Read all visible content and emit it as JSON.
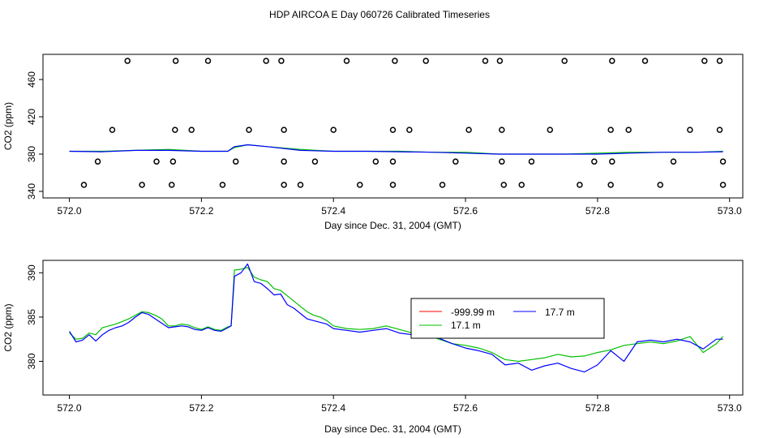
{
  "title": "HDP AIRCOA E  Day 060726  Calibrated Timeseries",
  "chart_data": [
    {
      "type": "scatter",
      "xlabel": "Day since Dec. 31, 2004 (GMT)",
      "ylabel": "CO2 (ppm)",
      "xlim": [
        571.96,
        573.02
      ],
      "ylim": [
        333,
        487
      ],
      "xticks": [
        "572.0",
        "572.2",
        "572.4",
        "572.6",
        "572.8",
        "573.0"
      ],
      "yticks": [
        "340",
        "380",
        "420",
        "460"
      ],
      "ytick_values": [
        340,
        380,
        420,
        460
      ],
      "calibration_points": [
        {
          "x": 572.088,
          "y": 480
        },
        {
          "x": 572.161,
          "y": 480
        },
        {
          "x": 572.21,
          "y": 480
        },
        {
          "x": 572.298,
          "y": 480
        },
        {
          "x": 572.321,
          "y": 480
        },
        {
          "x": 572.42,
          "y": 480
        },
        {
          "x": 572.493,
          "y": 480
        },
        {
          "x": 572.54,
          "y": 480
        },
        {
          "x": 572.63,
          "y": 480
        },
        {
          "x": 572.652,
          "y": 480
        },
        {
          "x": 572.75,
          "y": 480
        },
        {
          "x": 572.822,
          "y": 480
        },
        {
          "x": 572.872,
          "y": 480
        },
        {
          "x": 572.962,
          "y": 480
        },
        {
          "x": 572.985,
          "y": 480
        },
        {
          "x": 572.065,
          "y": 406
        },
        {
          "x": 572.16,
          "y": 406
        },
        {
          "x": 572.185,
          "y": 406
        },
        {
          "x": 572.272,
          "y": 406
        },
        {
          "x": 572.325,
          "y": 406
        },
        {
          "x": 572.4,
          "y": 406
        },
        {
          "x": 572.49,
          "y": 406
        },
        {
          "x": 572.515,
          "y": 406
        },
        {
          "x": 572.605,
          "y": 406
        },
        {
          "x": 572.655,
          "y": 406
        },
        {
          "x": 572.728,
          "y": 406
        },
        {
          "x": 572.82,
          "y": 406
        },
        {
          "x": 572.847,
          "y": 406
        },
        {
          "x": 572.94,
          "y": 406
        },
        {
          "x": 572.985,
          "y": 406
        },
        {
          "x": 572.043,
          "y": 372
        },
        {
          "x": 572.132,
          "y": 372
        },
        {
          "x": 572.157,
          "y": 372
        },
        {
          "x": 572.252,
          "y": 372
        },
        {
          "x": 572.325,
          "y": 372
        },
        {
          "x": 572.372,
          "y": 372
        },
        {
          "x": 572.464,
          "y": 372
        },
        {
          "x": 572.49,
          "y": 372
        },
        {
          "x": 572.585,
          "y": 372
        },
        {
          "x": 572.655,
          "y": 372
        },
        {
          "x": 572.7,
          "y": 372
        },
        {
          "x": 572.795,
          "y": 372
        },
        {
          "x": 572.822,
          "y": 372
        },
        {
          "x": 572.915,
          "y": 372
        },
        {
          "x": 572.99,
          "y": 372
        },
        {
          "x": 572.022,
          "y": 347
        },
        {
          "x": 572.11,
          "y": 347
        },
        {
          "x": 572.155,
          "y": 347
        },
        {
          "x": 572.232,
          "y": 347
        },
        {
          "x": 572.325,
          "y": 347
        },
        {
          "x": 572.35,
          "y": 347
        },
        {
          "x": 572.44,
          "y": 347
        },
        {
          "x": 572.49,
          "y": 347
        },
        {
          "x": 572.565,
          "y": 347
        },
        {
          "x": 572.658,
          "y": 347
        },
        {
          "x": 572.685,
          "y": 347
        },
        {
          "x": 572.773,
          "y": 347
        },
        {
          "x": 572.82,
          "y": 347
        },
        {
          "x": 572.895,
          "y": 347
        },
        {
          "x": 572.99,
          "y": 347
        }
      ],
      "series": [
        {
          "name": "17.1 m",
          "color": "#00c000",
          "x": [
            572.0,
            572.05,
            572.1,
            572.15,
            572.2,
            572.24,
            572.25,
            572.27,
            572.3,
            572.35,
            572.4,
            572.45,
            572.5,
            572.55,
            572.6,
            572.65,
            572.7,
            572.75,
            572.8,
            572.85,
            572.9,
            572.95,
            572.99
          ],
          "y": [
            383,
            383,
            384,
            385,
            383,
            383,
            387,
            390,
            388,
            385,
            383,
            383,
            383,
            382,
            382,
            380,
            380,
            380,
            381,
            382,
            382,
            382,
            383
          ]
        },
        {
          "name": "17.7 m",
          "color": "#0000ff",
          "x": [
            572.0,
            572.05,
            572.1,
            572.15,
            572.2,
            572.24,
            572.25,
            572.27,
            572.3,
            572.35,
            572.4,
            572.45,
            572.5,
            572.55,
            572.6,
            572.65,
            572.7,
            572.75,
            572.8,
            572.85,
            572.9,
            572.95,
            572.99
          ],
          "y": [
            383,
            382.5,
            384,
            384,
            383,
            383,
            388,
            390,
            388,
            384,
            383,
            383,
            382.5,
            382,
            381,
            380,
            380,
            380,
            380,
            381,
            382,
            382,
            382.5
          ]
        }
      ]
    },
    {
      "type": "line",
      "xlabel": "Day since Dec. 31, 2004 (GMT)",
      "ylabel": "CO2 (ppm)",
      "xlim": [
        571.96,
        573.02
      ],
      "ylim": [
        376.2,
        391.4
      ],
      "xticks": [
        "572.0",
        "572.2",
        "572.4",
        "572.6",
        "572.8",
        "573.0"
      ],
      "yticks": [
        "380",
        "385",
        "390"
      ],
      "ytick_values": [
        380,
        385,
        390
      ],
      "legend_position": "center-right",
      "series": [
        {
          "name": "-999.99 m",
          "color": "#ff0000",
          "x": [],
          "y": []
        },
        {
          "name": "17.1 m",
          "color": "#00c000",
          "x": [
            572.0,
            572.01,
            572.02,
            572.03,
            572.04,
            572.05,
            572.06,
            572.07,
            572.08,
            572.09,
            572.1,
            572.11,
            572.12,
            572.13,
            572.14,
            572.15,
            572.16,
            572.17,
            572.18,
            572.19,
            572.2,
            572.21,
            572.22,
            572.23,
            572.24,
            572.245,
            572.25,
            572.26,
            572.27,
            572.28,
            572.29,
            572.3,
            572.31,
            572.32,
            572.33,
            572.34,
            572.35,
            572.36,
            572.37,
            572.38,
            572.39,
            572.4,
            572.42,
            572.44,
            572.46,
            572.48,
            572.5,
            572.52,
            572.54,
            572.56,
            572.58,
            572.6,
            572.62,
            572.64,
            572.66,
            572.68,
            572.7,
            572.72,
            572.74,
            572.76,
            572.78,
            572.8,
            572.82,
            572.84,
            572.86,
            572.88,
            572.9,
            572.92,
            572.94,
            572.96,
            572.98,
            572.99
          ],
          "y": [
            383.2,
            382.5,
            382.6,
            383.2,
            383.0,
            383.8,
            384.0,
            384.2,
            384.5,
            384.8,
            385.2,
            385.6,
            385.5,
            385.2,
            384.8,
            384.0,
            384.0,
            384.2,
            384.1,
            383.8,
            383.6,
            383.9,
            383.6,
            383.5,
            383.9,
            384.0,
            390.3,
            390.4,
            390.6,
            389.5,
            389.2,
            389.0,
            388.2,
            388.0,
            387.4,
            386.8,
            386.2,
            385.6,
            385.2,
            385.0,
            384.6,
            384.0,
            383.7,
            383.6,
            383.7,
            384.0,
            383.6,
            383.2,
            383.0,
            382.5,
            382.0,
            381.8,
            381.5,
            381.0,
            380.2,
            380.0,
            380.2,
            380.4,
            380.8,
            380.5,
            380.6,
            381.0,
            381.3,
            381.8,
            382.0,
            382.2,
            382.0,
            382.3,
            382.8,
            381.0,
            382.0,
            382.8
          ]
        },
        {
          "name": "17.7 m",
          "color": "#0000ff",
          "x": [
            572.0,
            572.01,
            572.02,
            572.03,
            572.04,
            572.05,
            572.06,
            572.07,
            572.08,
            572.09,
            572.1,
            572.11,
            572.12,
            572.13,
            572.14,
            572.15,
            572.16,
            572.17,
            572.18,
            572.19,
            572.2,
            572.21,
            572.22,
            572.23,
            572.24,
            572.245,
            572.25,
            572.26,
            572.27,
            572.28,
            572.29,
            572.3,
            572.31,
            572.32,
            572.33,
            572.34,
            572.35,
            572.36,
            572.37,
            572.38,
            572.39,
            572.4,
            572.42,
            572.44,
            572.46,
            572.48,
            572.5,
            572.52,
            572.54,
            572.56,
            572.58,
            572.6,
            572.62,
            572.64,
            572.66,
            572.68,
            572.7,
            572.72,
            572.74,
            572.76,
            572.78,
            572.8,
            572.82,
            572.84,
            572.86,
            572.88,
            572.9,
            572.92,
            572.94,
            572.96,
            572.98,
            572.99
          ],
          "y": [
            383.4,
            382.2,
            382.4,
            383.0,
            382.3,
            383.0,
            383.5,
            383.8,
            384.0,
            384.4,
            385.0,
            385.5,
            385.3,
            384.8,
            384.3,
            383.8,
            383.9,
            384.0,
            383.9,
            383.6,
            383.5,
            383.8,
            383.5,
            383.4,
            383.8,
            384.0,
            389.6,
            390.0,
            391.0,
            389.0,
            388.8,
            388.2,
            387.5,
            387.6,
            386.4,
            386.0,
            385.4,
            384.8,
            384.6,
            384.4,
            384.2,
            383.7,
            383.5,
            383.3,
            383.5,
            383.7,
            383.2,
            383.0,
            382.9,
            382.6,
            382.0,
            381.5,
            381.2,
            380.8,
            379.6,
            379.8,
            379.0,
            379.5,
            379.8,
            379.2,
            378.8,
            379.6,
            381.2,
            380.0,
            382.2,
            382.4,
            382.2,
            382.5,
            382.2,
            381.4,
            382.5,
            382.5
          ]
        }
      ]
    }
  ]
}
